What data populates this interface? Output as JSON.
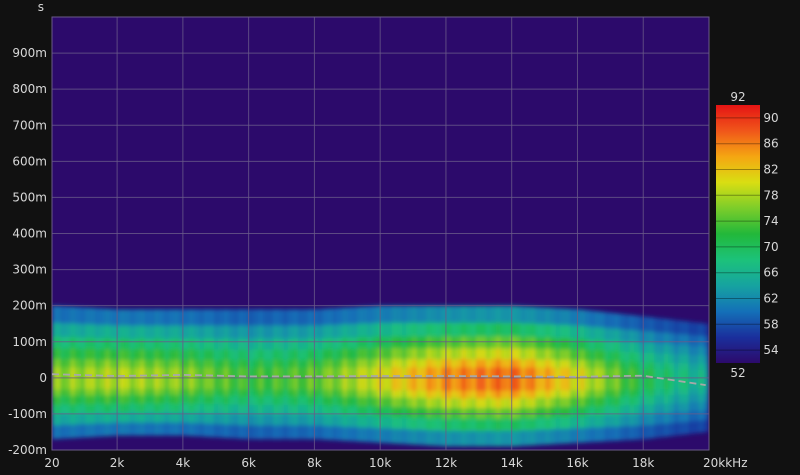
{
  "chart_data": {
    "type": "heatmap",
    "subtype": "spectrogram",
    "y_unit": "s",
    "x_unit_label": "kHz",
    "x_ticks": [
      {
        "value": 20,
        "label": "20"
      },
      {
        "value": 2000,
        "label": "2k"
      },
      {
        "value": 4000,
        "label": "4k"
      },
      {
        "value": 6000,
        "label": "6k"
      },
      {
        "value": 8000,
        "label": "8k"
      },
      {
        "value": 10000,
        "label": "10k"
      },
      {
        "value": 12000,
        "label": "12k"
      },
      {
        "value": 14000,
        "label": "14k"
      },
      {
        "value": 16000,
        "label": "16k"
      },
      {
        "value": 18000,
        "label": "18k"
      },
      {
        "value": 20000,
        "label": "20k"
      }
    ],
    "y_ticks": [
      {
        "value": -0.2,
        "label": "-200m"
      },
      {
        "value": -0.1,
        "label": "-100m"
      },
      {
        "value": 0,
        "label": "0"
      },
      {
        "value": 0.1,
        "label": "100m"
      },
      {
        "value": 0.2,
        "label": "200m"
      },
      {
        "value": 0.3,
        "label": "300m"
      },
      {
        "value": 0.4,
        "label": "400m"
      },
      {
        "value": 0.5,
        "label": "500m"
      },
      {
        "value": 0.6,
        "label": "600m"
      },
      {
        "value": 0.7,
        "label": "700m"
      },
      {
        "value": 0.8,
        "label": "800m"
      },
      {
        "value": 0.9,
        "label": "900m"
      }
    ],
    "xlim": [
      20,
      20000
    ],
    "ylim": [
      -0.2,
      1.0
    ],
    "grid": true,
    "colorbar": {
      "min": 52,
      "max": 92,
      "min_label": "52",
      "max_label": "92",
      "ticks": [
        {
          "value": 90,
          "label": "90"
        },
        {
          "value": 86,
          "label": "86"
        },
        {
          "value": 82,
          "label": "82"
        },
        {
          "value": 78,
          "label": "78"
        },
        {
          "value": 74,
          "label": "74"
        },
        {
          "value": 70,
          "label": "70"
        },
        {
          "value": 66,
          "label": "66"
        },
        {
          "value": 62,
          "label": "62"
        },
        {
          "value": 58,
          "label": "58"
        },
        {
          "value": 54,
          "label": "54"
        }
      ],
      "colors": [
        "#2c0a6b",
        "#1a2f9c",
        "#1470b8",
        "#16a3a0",
        "#1cc27a",
        "#22b83a",
        "#7ccd2a",
        "#d9de12",
        "#f5a612",
        "#f0561a",
        "#e51414"
      ]
    },
    "band_profile": {
      "x": [
        20,
        2000,
        4000,
        6000,
        8000,
        10000,
        12000,
        14000,
        16000,
        18000,
        19900
      ],
      "upper_s": [
        0.2,
        0.19,
        0.19,
        0.19,
        0.19,
        0.2,
        0.2,
        0.2,
        0.19,
        0.17,
        0.15
      ],
      "lower_s": [
        -0.17,
        -0.16,
        -0.16,
        -0.17,
        -0.17,
        -0.18,
        -0.19,
        -0.19,
        -0.18,
        -0.17,
        -0.15
      ],
      "peak_level": [
        78,
        80,
        78,
        74,
        76,
        82,
        88,
        90,
        82,
        72,
        66
      ]
    },
    "peak_trace": {
      "x": [
        20,
        2000,
        4000,
        6000,
        8000,
        10000,
        12000,
        14000,
        16000,
        18000,
        19900
      ],
      "y": [
        0.01,
        0.005,
        0.008,
        0.004,
        0.004,
        0.005,
        0.005,
        0.004,
        0.003,
        0.006,
        -0.02
      ]
    },
    "colors": {
      "background": "#111111",
      "plot_area": "#2c0a6b",
      "grid": "#6a5a8a",
      "text": "#d8d8d8",
      "trace": "#a8a8a8"
    }
  }
}
